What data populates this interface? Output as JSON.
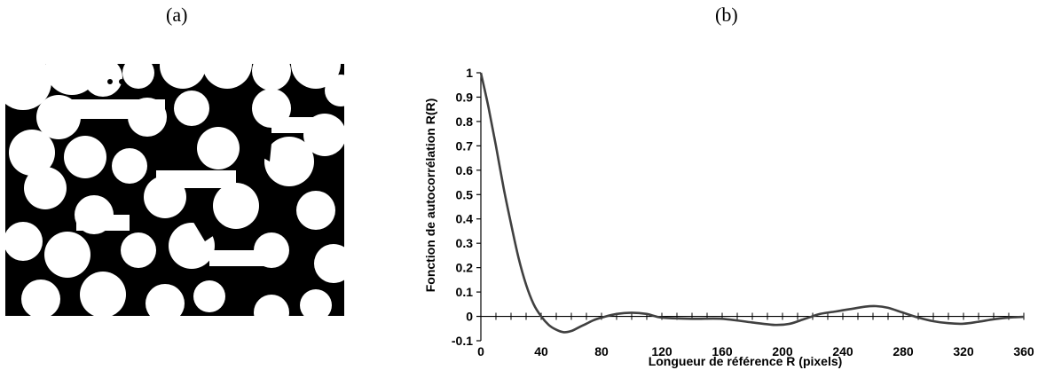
{
  "panels": {
    "a": {
      "label": "(a)"
    },
    "b": {
      "label": "(b)"
    }
  },
  "colors": {
    "curve": "#404040",
    "axis": "#000000",
    "phase_dark": "#000000",
    "phase_light": "#ffffff"
  },
  "chart_data": {
    "type": "line",
    "title": "",
    "xlabel": "Longueur de référence R (pixels)",
    "ylabel": "Fonction de autocorrélation R(R)",
    "xlim": [
      0,
      360
    ],
    "ylim": [
      -0.1,
      1
    ],
    "xticks": [
      0,
      40,
      80,
      120,
      160,
      200,
      240,
      280,
      320,
      360
    ],
    "yticks": [
      -0.1,
      0,
      0.1,
      0.2,
      0.3,
      0.4,
      0.5,
      0.6,
      0.7,
      0.8,
      0.9,
      1
    ],
    "ytick_labels": [
      "-0.1",
      "0",
      "0.1",
      "0.2",
      "0.3",
      "0.4",
      "0.5",
      "0.6",
      "0.7",
      "0.8",
      "0.9",
      "1"
    ],
    "grid": false,
    "series": [
      {
        "x": [
          0,
          5,
          10,
          15,
          20,
          25,
          30,
          35,
          40,
          45,
          50,
          55,
          60,
          65,
          70,
          75,
          80,
          90,
          100,
          110,
          120,
          140,
          160,
          180,
          195,
          205,
          215,
          225,
          235,
          245,
          255,
          262,
          270,
          280,
          290,
          300,
          310,
          320,
          330,
          340,
          350,
          360
        ],
        "y": [
          1.0,
          0.86,
          0.7,
          0.53,
          0.38,
          0.24,
          0.13,
          0.05,
          0.0,
          -0.035,
          -0.055,
          -0.065,
          -0.06,
          -0.045,
          -0.03,
          -0.015,
          -0.005,
          0.01,
          0.015,
          0.01,
          -0.005,
          -0.01,
          -0.01,
          -0.025,
          -0.035,
          -0.03,
          -0.01,
          0.01,
          0.02,
          0.03,
          0.04,
          0.042,
          0.035,
          0.015,
          -0.005,
          -0.02,
          -0.028,
          -0.03,
          -0.022,
          -0.012,
          -0.005,
          -0.002
        ]
      }
    ]
  }
}
